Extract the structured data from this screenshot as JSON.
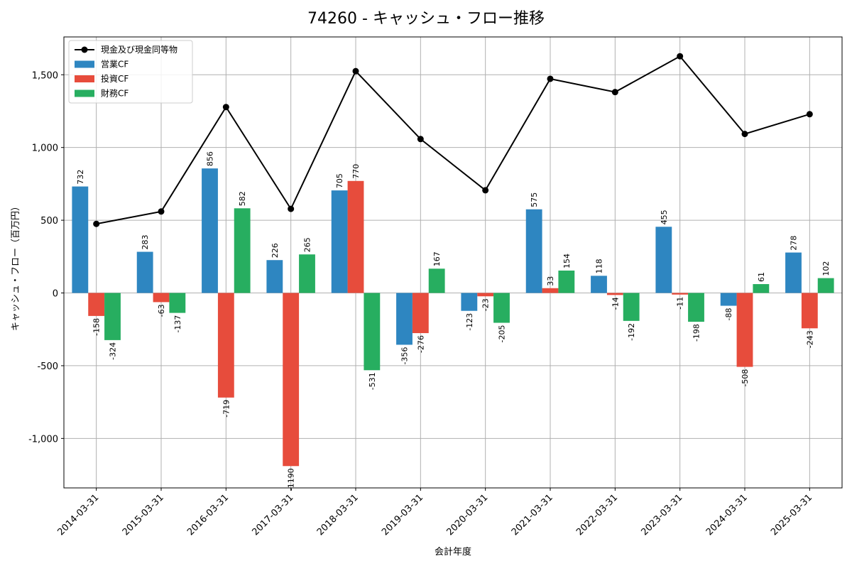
{
  "chart_data": {
    "type": "bar",
    "title": "74260 - キャッシュ・フロー推移",
    "xlabel": "会計年度",
    "ylabel": "キャッシュ・フロー（百万円）",
    "categories": [
      "2014-03-31",
      "2015-03-31",
      "2016-03-31",
      "2017-03-31",
      "2018-03-31",
      "2019-03-31",
      "2020-03-31",
      "2021-03-31",
      "2022-03-31",
      "2023-03-31",
      "2024-03-31",
      "2025-03-31"
    ],
    "ylim": [
      -1340,
      1760
    ],
    "yticks": [
      -1000,
      -500,
      0,
      500,
      1000,
      1500
    ],
    "ytick_labels": [
      "-1,000",
      "-500",
      "0",
      "500",
      "1,000",
      "1,500"
    ],
    "grid": true,
    "legend_position": "top-left",
    "series": [
      {
        "name": "営業CF",
        "kind": "bar",
        "color": "#2e86c1",
        "values": [
          732,
          283,
          856,
          226,
          705,
          -356,
          -123,
          575,
          118,
          455,
          -88,
          278
        ]
      },
      {
        "name": "投資CF",
        "kind": "bar",
        "color": "#e74c3c",
        "values": [
          -158,
          -63,
          -719,
          -1190,
          770,
          -276,
          -23,
          33,
          -14,
          -11,
          -508,
          -243
        ]
      },
      {
        "name": "財務CF",
        "kind": "bar",
        "color": "#27ae60",
        "values": [
          -324,
          -137,
          582,
          265,
          -531,
          167,
          -205,
          154,
          -192,
          -198,
          61,
          102
        ]
      }
    ],
    "line_series": {
      "name": "現金及び現金同等物",
      "kind": "line",
      "color": "#000000",
      "values": [
        475,
        560,
        1278,
        578,
        1525,
        1058,
        706,
        1472,
        1381,
        1627,
        1093,
        1229
      ]
    }
  }
}
